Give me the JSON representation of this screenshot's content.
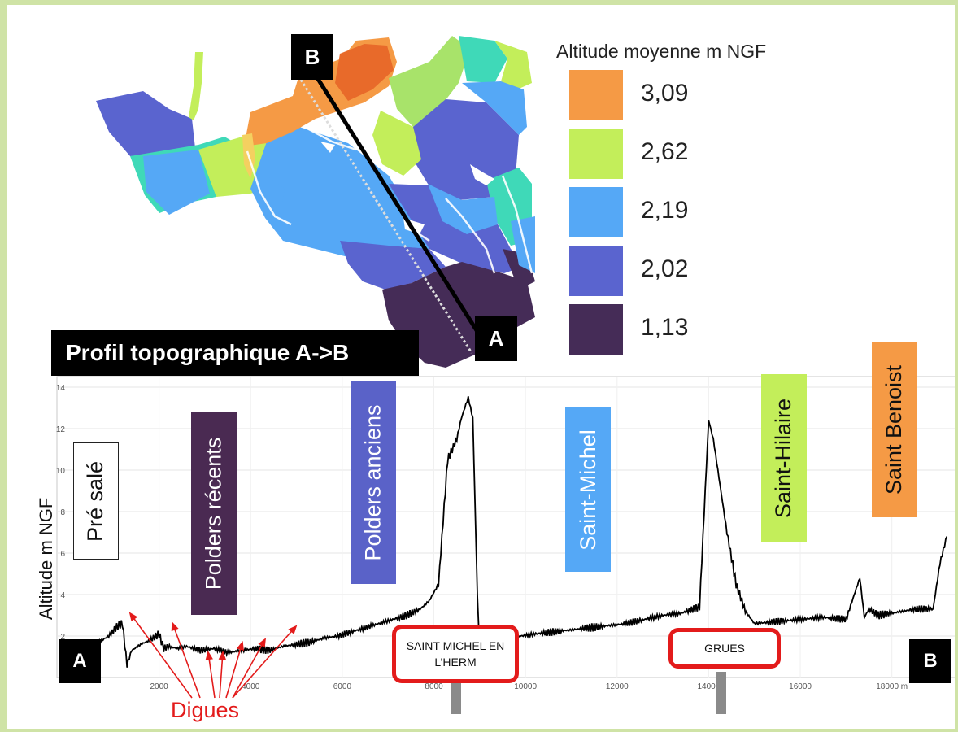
{
  "legend": {
    "title": "Altitude moyenne m NGF",
    "items": [
      {
        "label": "3,09",
        "color": "#f59a45"
      },
      {
        "label": "2,62",
        "color": "#c3ee5a"
      },
      {
        "label": "2,19",
        "color": "#55a8f6"
      },
      {
        "label": "2,02",
        "color": "#5a64cf"
      },
      {
        "label": "1,13",
        "color": "#452c57"
      }
    ]
  },
  "map_markers": {
    "a": "A",
    "b": "B"
  },
  "profile_title": "Profil topographique A->B",
  "chart_data": {
    "type": "line",
    "ylabel": "Altitude m NGF",
    "xlabel": "",
    "xlim": [
      0,
      19000
    ],
    "ylim": [
      0,
      14
    ],
    "x_ticks": [
      {
        "value": 2000,
        "label": "2000"
      },
      {
        "value": 4000,
        "label": "4000"
      },
      {
        "value": 6000,
        "label": "6000"
      },
      {
        "value": 8000,
        "label": "8000"
      },
      {
        "value": 10000,
        "label": "10000"
      },
      {
        "value": 12000,
        "label": "12000"
      },
      {
        "value": 14000,
        "label": "14000"
      },
      {
        "value": 16000,
        "label": "16000"
      },
      {
        "value": 18000,
        "label": "18000 m"
      }
    ],
    "y_ticks": [
      {
        "value": 2,
        "label": "2"
      },
      {
        "value": 4,
        "label": "4"
      },
      {
        "value": 6,
        "label": "6"
      },
      {
        "value": 8,
        "label": "8"
      },
      {
        "value": 10,
        "label": "10"
      },
      {
        "value": 12,
        "label": "12"
      },
      {
        "value": 14,
        "label": "14"
      }
    ],
    "grid": true,
    "series": [
      {
        "color": "#000000",
        "x": [
          0,
          300,
          600,
          900,
          1100,
          1200,
          1300,
          1400,
          1600,
          1800,
          2000,
          2100,
          2200,
          2400,
          2600,
          2900,
          3200,
          3500,
          3800,
          4100,
          4400,
          4700,
          5000,
          5300,
          5600,
          5900,
          6200,
          6500,
          6800,
          7100,
          7400,
          7700,
          7900,
          8100,
          8300,
          8500,
          8600,
          8750,
          8850,
          8950,
          9000,
          9100,
          9300,
          9600,
          9900,
          10200,
          10600,
          11000,
          11400,
          11800,
          12200,
          12600,
          13000,
          13400,
          13800,
          14000,
          14100,
          14200,
          14400,
          14600,
          14800,
          15000,
          15500,
          16000,
          16500,
          17000,
          17300,
          17400,
          17500,
          17700,
          18000,
          18500,
          18900,
          19050,
          19200
        ],
        "y": [
          0.5,
          1.0,
          1.6,
          2.0,
          2.5,
          2.6,
          0.6,
          1.3,
          1.6,
          1.8,
          2.1,
          1.4,
          1.5,
          1.4,
          1.5,
          1.3,
          1.4,
          1.2,
          1.3,
          1.4,
          1.3,
          1.5,
          1.6,
          1.7,
          1.9,
          2.0,
          2.2,
          2.4,
          2.6,
          2.8,
          3.0,
          3.3,
          3.7,
          4.5,
          10.5,
          11.5,
          12.5,
          13.5,
          12.5,
          4.0,
          1.2,
          1.4,
          1.6,
          1.8,
          2.0,
          2.1,
          2.2,
          2.3,
          2.4,
          2.5,
          2.6,
          2.8,
          3.0,
          3.1,
          3.4,
          12.4,
          11.5,
          10.0,
          7.0,
          4.5,
          3.2,
          2.6,
          2.7,
          2.8,
          2.9,
          2.8,
          4.8,
          2.9,
          3.3,
          3.0,
          3.1,
          3.3,
          3.3,
          5.5,
          6.8
        ]
      }
    ],
    "annotations": {
      "point_a": "A",
      "point_b": "B",
      "zones": [
        {
          "label": "Pré salé",
          "color": "#ffffff"
        },
        {
          "label": "Polders récents",
          "color": "#4a2a52"
        },
        {
          "label": "Polders anciens",
          "color": "#5a62c8"
        },
        {
          "label": "Saint-Michel",
          "color": "#55a8f6"
        },
        {
          "label": "Saint-Hilaire",
          "color": "#c3ee5a"
        },
        {
          "label": "Saint Benoist",
          "color": "#f59a45"
        }
      ],
      "town_signs": [
        "SAINT MICHEL EN L’HERM",
        "GRUES"
      ],
      "digues_label": "Digues"
    }
  }
}
